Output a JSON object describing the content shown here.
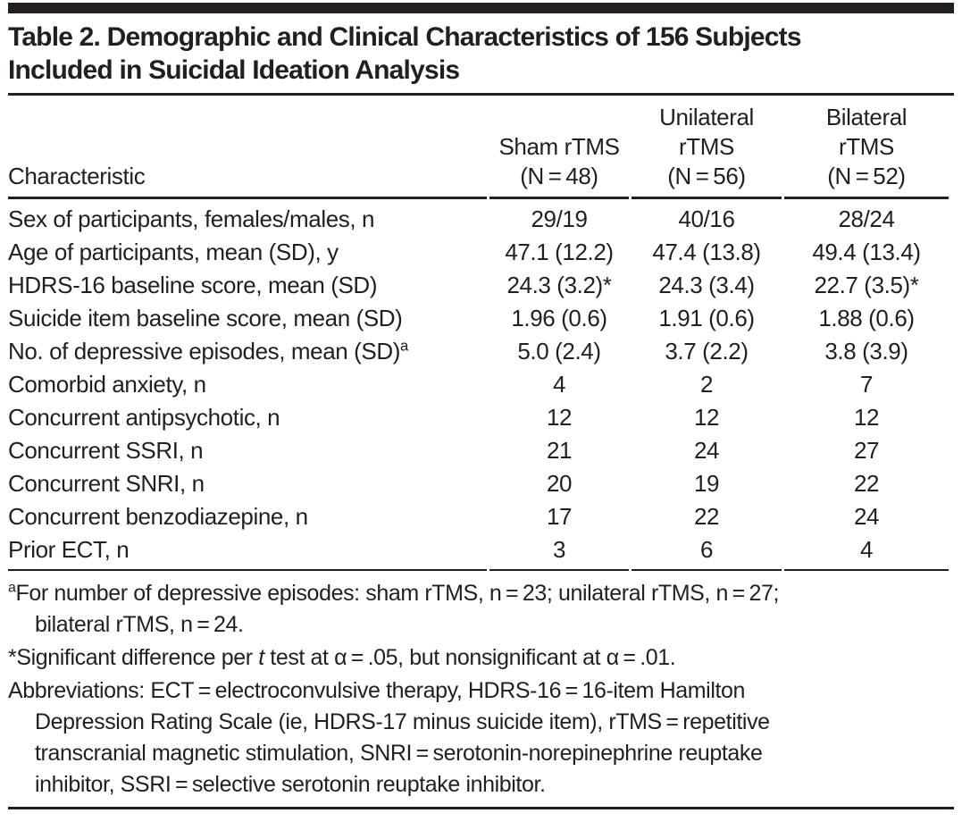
{
  "title": {
    "line1": "Table 2. Demographic and Clinical Characteristics of 156 Subjects",
    "line2": "Included in Suicidal Ideation Analysis"
  },
  "table": {
    "columns": [
      {
        "key": "characteristic",
        "label_lines": [
          "Characteristic"
        ]
      },
      {
        "key": "sham-rtms",
        "label_lines": [
          "Sham rTMS",
          "(N = 48)"
        ]
      },
      {
        "key": "unilateral-rtms",
        "label_lines": [
          "Unilateral",
          "rTMS",
          "(N = 56)"
        ]
      },
      {
        "key": "bilateral-rtms",
        "label_lines": [
          "Bilateral",
          "rTMS",
          "(N = 52)"
        ]
      }
    ],
    "rows": [
      {
        "label": "Sex of participants, females/males, n",
        "values": [
          "29/19",
          "40/16",
          "28/24"
        ]
      },
      {
        "label": "Age of participants, mean (SD), y",
        "values": [
          "47.1 (12.2)",
          "47.4 (13.8)",
          "49.4 (13.4)"
        ]
      },
      {
        "label": "HDRS-16 baseline score, mean (SD)",
        "values": [
          "24.3 (3.2)*",
          "24.3 (3.4)",
          "22.7 (3.5)*"
        ]
      },
      {
        "label": "Suicide item baseline score, mean (SD)",
        "values": [
          "1.96 (0.6)",
          "1.91 (0.6)",
          "1.88 (0.6)"
        ]
      },
      {
        "label": "No. of depressive episodes, mean (SD)",
        "label_sup": "a",
        "values": [
          "5.0 (2.4)",
          "3.7 (2.2)",
          "3.8 (3.9)"
        ]
      },
      {
        "label": "Comorbid anxiety, n",
        "values": [
          "4",
          "2",
          "7"
        ]
      },
      {
        "label": "Concurrent antipsychotic, n",
        "values": [
          "12",
          "12",
          "12"
        ]
      },
      {
        "label": "Concurrent SSRI, n",
        "values": [
          "21",
          "24",
          "27"
        ]
      },
      {
        "label": "Concurrent SNRI, n",
        "values": [
          "20",
          "19",
          "22"
        ]
      },
      {
        "label": "Concurrent benzodiazepine, n",
        "values": [
          "17",
          "22",
          "24"
        ]
      },
      {
        "label": "Prior ECT, n",
        "values": [
          "3",
          "6",
          "4"
        ]
      }
    ]
  },
  "footnotes": {
    "episodes": {
      "sup": "a",
      "line1": "For number of depressive episodes: sham rTMS, n = 23; unilateral rTMS, n = 27;",
      "line2": "bilateral rTMS, n = 24."
    },
    "significance": {
      "before_italic": "*Significant difference per ",
      "italic": "t",
      "after_italic": " test at α = .05, but nonsignificant at α = .01."
    },
    "abbreviations": {
      "lines": [
        "Abbreviations: ECT = electroconvulsive therapy, HDRS-16 = 16-item Hamilton",
        "Depression Rating Scale (ie, HDRS-17 minus suicide item), rTMS = repetitive",
        "transcranial magnetic stimulation, SNRI = serotonin-norepinephrine reuptake",
        "inhibitor, SSRI = selective serotonin reuptake inhibitor."
      ]
    }
  },
  "colors": {
    "text": "#231f20",
    "rule": "#231f20",
    "background": "#ffffff"
  }
}
